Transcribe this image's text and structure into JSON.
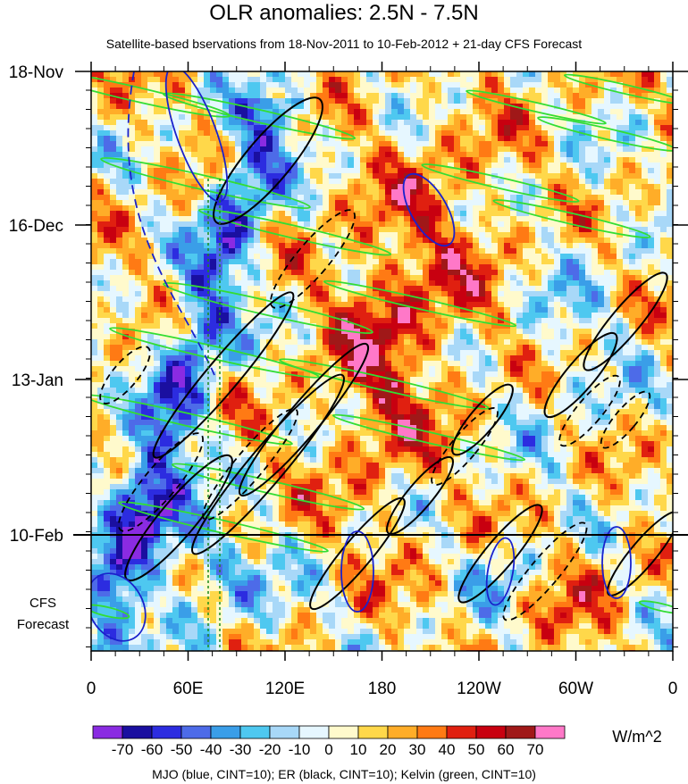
{
  "chart_data": {
    "type": "heatmap",
    "title": "OLR anomalies: 2.5N - 7.5N",
    "subtitle": "Satellite-based bservations from 18-Nov-2011 to 10-Feb-2012 + 21-day CFS Forecast",
    "x_ticks": [
      "0",
      "60E",
      "120E",
      "180",
      "120W",
      "60W",
      "0"
    ],
    "y_ticks": [
      "18-Nov",
      "16-Dec",
      "13-Jan",
      "10-Feb"
    ],
    "forecast_label": [
      "CFS",
      "Forecast"
    ],
    "colorbar": {
      "unit": "W/m^2",
      "levels": [
        "-70",
        "-60",
        "-50",
        "-40",
        "-30",
        "-20",
        "-10",
        "0",
        "10",
        "20",
        "30",
        "40",
        "50",
        "60",
        "70"
      ],
      "colors": [
        "#8a2be2",
        "#1a0fa0",
        "#2c2ce0",
        "#4d6be8",
        "#3a9ee8",
        "#4ec8f0",
        "#a8d8f8",
        "#e6f7ff",
        "#fffacc",
        "#ffd84a",
        "#ffad28",
        "#ff7a14",
        "#e02010",
        "#c80010",
        "#a01818",
        "#ff78c8"
      ]
    },
    "contour_caption": "MJO (blue, CINT=10); ER (black, CINT=10); Kelvin (green, CINT=10)"
  }
}
